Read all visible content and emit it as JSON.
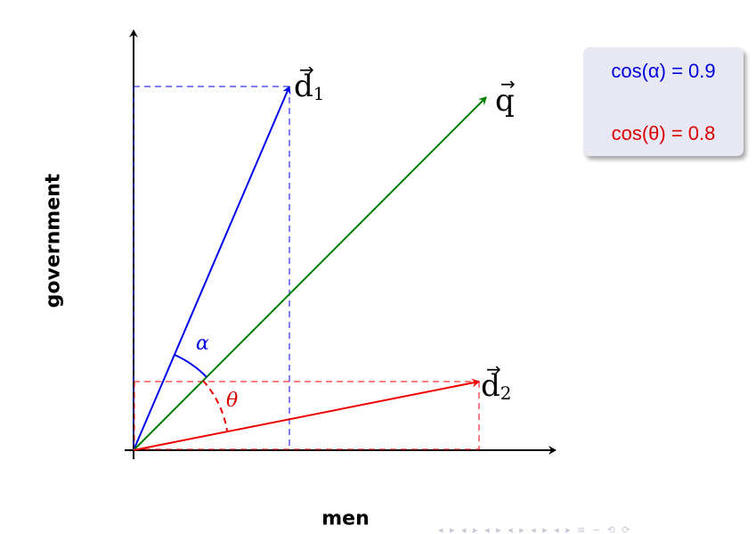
{
  "axes": {
    "x_label": "men",
    "y_label": "government"
  },
  "vectors": {
    "d1": {
      "symbol": "d",
      "subscript": "1",
      "accent": "→",
      "color": "#0000ee"
    },
    "q": {
      "symbol": "q",
      "accent": "→",
      "color": "#008000"
    },
    "d2": {
      "symbol": "d",
      "subscript": "2",
      "accent": "→",
      "color": "#ee0000"
    }
  },
  "angles": {
    "alpha": "α",
    "theta": "θ"
  },
  "cosines": {
    "alpha": "cos(α) = 0.9",
    "theta": "cos(θ) = 0.8"
  },
  "nav": {
    "glyphs": "◂ ▸ ◂ ▸ ◂ ▸ ◂ ▸ ◂ ▸ ◂ ▸ ≡ ∽ ⟲ ⟳"
  }
}
